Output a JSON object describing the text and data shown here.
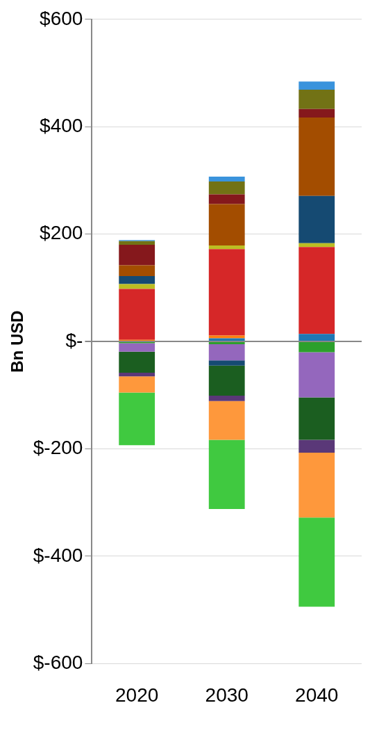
{
  "chart_data": {
    "type": "bar",
    "stacked": true,
    "ylabel": "Bn USD",
    "categories": [
      "2020",
      "2030",
      "2040"
    ],
    "ylim": [
      -600,
      600
    ],
    "yticks": [
      {
        "value": -600,
        "label": "$-600"
      },
      {
        "value": -400,
        "label": "$-400"
      },
      {
        "value": -200,
        "label": "$-200"
      },
      {
        "value": 0,
        "label": "$-"
      },
      {
        "value": 200,
        "label": "$200"
      },
      {
        "value": 400,
        "label": "$400"
      },
      {
        "value": 600,
        "label": "$600"
      }
    ],
    "grid": "y",
    "legend": false,
    "series": [
      {
        "color": "#1f77b4",
        "values": [
          0,
          6,
          14
        ]
      },
      {
        "color": "#ff7f0e",
        "values": [
          3,
          5,
          0
        ]
      },
      {
        "color": "#2ca02c",
        "values": [
          -3,
          -5,
          -20
        ]
      },
      {
        "color": "#9467bd",
        "values": [
          -16,
          -30,
          -84
        ]
      },
      {
        "color": "#d62728",
        "values": [
          95,
          161,
          162
        ]
      },
      {
        "color": "#bcbd22",
        "values": [
          9,
          7,
          7
        ]
      },
      {
        "color": "#154a72",
        "values": [
          15,
          -10,
          88
        ]
      },
      {
        "color": "#1b5e20",
        "values": [
          -39,
          -56,
          -79
        ]
      },
      {
        "color": "#5a3878",
        "values": [
          -7,
          -10,
          -24
        ]
      },
      {
        "color": "#fe983c",
        "values": [
          -30,
          -72,
          -121
        ]
      },
      {
        "color": "#40c940",
        "values": [
          -98,
          -129,
          -166
        ]
      },
      {
        "color": "#a34d00",
        "values": [
          20,
          77,
          146
        ]
      },
      {
        "color": "#85181c",
        "values": [
          38,
          18,
          16
        ]
      },
      {
        "color": "#727215",
        "values": [
          7,
          24,
          36
        ]
      },
      {
        "color": "#3a93dc",
        "values": [
          2,
          9,
          15
        ]
      }
    ]
  }
}
